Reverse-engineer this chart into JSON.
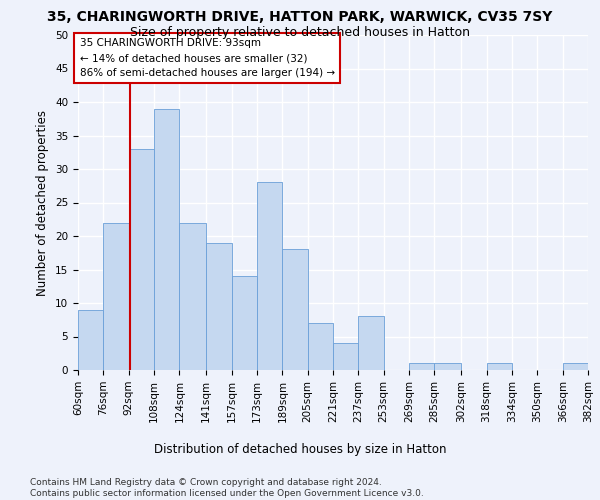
{
  "title": "35, CHARINGWORTH DRIVE, HATTON PARK, WARWICK, CV35 7SY",
  "subtitle": "Size of property relative to detached houses in Hatton",
  "xlabel": "Distribution of detached houses by size in Hatton",
  "ylabel": "Number of detached properties",
  "bar_edges": [
    60,
    76,
    92,
    108,
    124,
    141,
    157,
    173,
    189,
    205,
    221,
    237,
    253,
    269,
    285,
    302,
    318,
    334,
    350,
    366,
    382
  ],
  "bar_heights": [
    9,
    22,
    33,
    39,
    22,
    19,
    14,
    28,
    18,
    7,
    4,
    8,
    0,
    1,
    1,
    0,
    1,
    0,
    0,
    1
  ],
  "bar_color": "#c5d8f0",
  "bar_edgecolor": "#6a9fd8",
  "vline_x": 93,
  "vline_color": "#cc0000",
  "annotation_text": "35 CHARINGWORTH DRIVE: 93sqm\n← 14% of detached houses are smaller (32)\n86% of semi-detached houses are larger (194) →",
  "annotation_box_edgecolor": "#cc0000",
  "annotation_box_facecolor": "#ffffff",
  "ylim": [
    0,
    50
  ],
  "yticks": [
    0,
    5,
    10,
    15,
    20,
    25,
    30,
    35,
    40,
    45,
    50
  ],
  "tick_labels": [
    "60sqm",
    "76sqm",
    "92sqm",
    "108sqm",
    "124sqm",
    "141sqm",
    "157sqm",
    "173sqm",
    "189sqm",
    "205sqm",
    "221sqm",
    "237sqm",
    "253sqm",
    "269sqm",
    "285sqm",
    "302sqm",
    "318sqm",
    "334sqm",
    "350sqm",
    "366sqm",
    "382sqm"
  ],
  "footer_text": "Contains HM Land Registry data © Crown copyright and database right 2024.\nContains public sector information licensed under the Open Government Licence v3.0.",
  "background_color": "#eef2fb",
  "grid_color": "#ffffff",
  "title_fontsize": 10,
  "subtitle_fontsize": 9,
  "axis_label_fontsize": 8.5,
  "tick_fontsize": 7.5,
  "footer_fontsize": 6.5,
  "annotation_fontsize": 7.5
}
